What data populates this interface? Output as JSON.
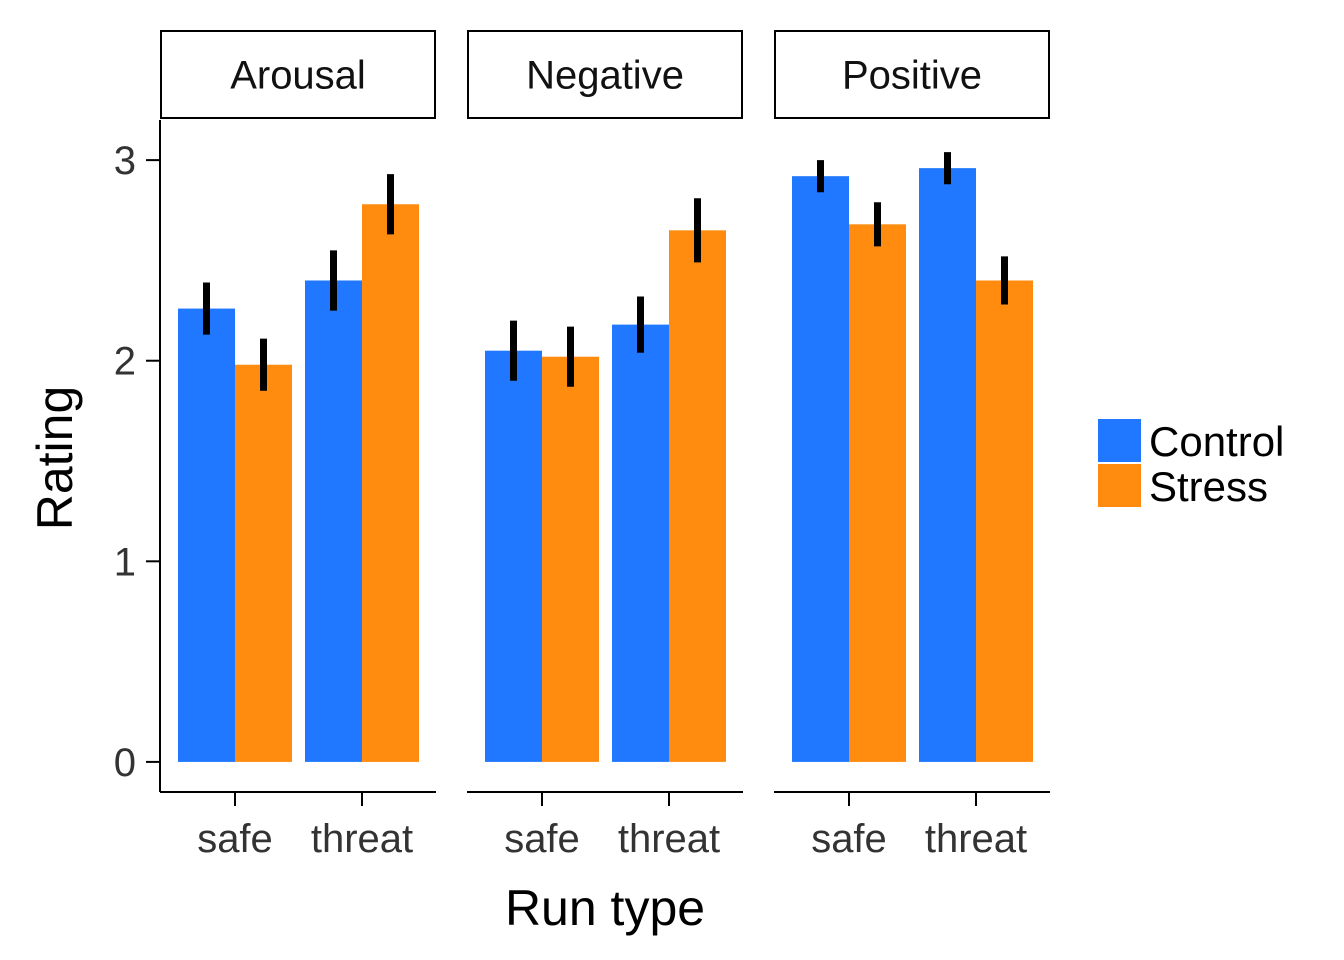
{
  "chart_data": {
    "type": "bar",
    "xlabel": "Run type",
    "ylabel": "Rating",
    "ylim": [
      -0.15,
      3.2
    ],
    "yticks": [
      0,
      1,
      2,
      3
    ],
    "categories": [
      "safe",
      "threat"
    ],
    "series_names": [
      "Control",
      "Stress"
    ],
    "colors": {
      "Control": "#1f78ff",
      "Stress": "#ff8c0f",
      "errorbar": "#000000"
    },
    "legend_position": "right",
    "grid": false,
    "facets": [
      {
        "name": "Arousal",
        "series": [
          {
            "name": "Control",
            "values": [
              2.26,
              2.4
            ],
            "error": [
              0.13,
              0.15
            ]
          },
          {
            "name": "Stress",
            "values": [
              1.98,
              2.78
            ],
            "error": [
              0.13,
              0.15
            ]
          }
        ]
      },
      {
        "name": "Negative",
        "series": [
          {
            "name": "Control",
            "values": [
              2.05,
              2.18
            ],
            "error": [
              0.15,
              0.14
            ]
          },
          {
            "name": "Stress",
            "values": [
              2.02,
              2.65
            ],
            "error": [
              0.15,
              0.16
            ]
          }
        ]
      },
      {
        "name": "Positive",
        "series": [
          {
            "name": "Control",
            "values": [
              2.92,
              2.96
            ],
            "error": [
              0.08,
              0.08
            ]
          },
          {
            "name": "Stress",
            "values": [
              2.68,
              2.4
            ],
            "error": [
              0.11,
              0.12
            ]
          }
        ]
      }
    ]
  }
}
